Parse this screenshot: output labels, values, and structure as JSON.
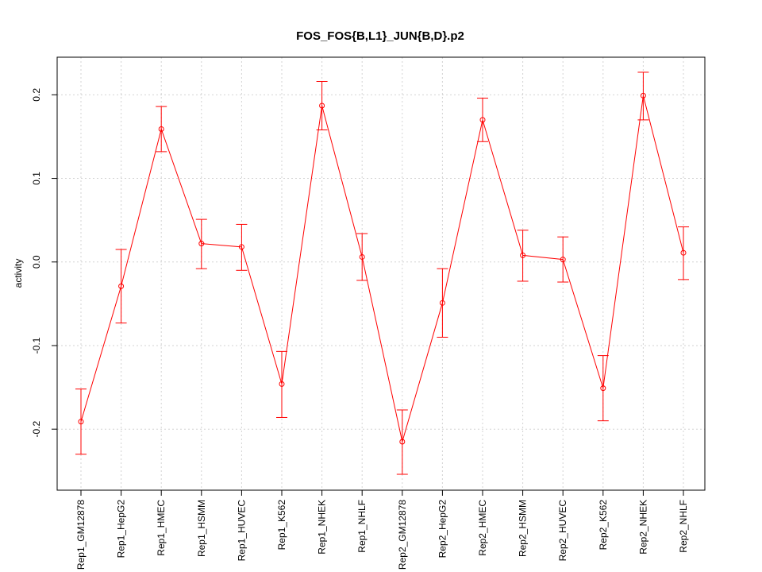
{
  "chart_data": {
    "type": "line",
    "title": "FOS_FOS{B,L1}_JUN{B,D}.p2",
    "xlabel": "",
    "ylabel": "activity",
    "categories": [
      "Rep1_GM12878",
      "Rep1_HepG2",
      "Rep1_HMEC",
      "Rep1_HSMM",
      "Rep1_HUVEC",
      "Rep1_K562",
      "Rep1_NHEK",
      "Rep1_NHLF",
      "Rep2_GM12878",
      "Rep2_HepG2",
      "Rep2_HMEC",
      "Rep2_HSMM",
      "Rep2_HUVEC",
      "Rep2_K562",
      "Rep2_NHEK",
      "Rep2_NHLF"
    ],
    "yticks": [
      -0.2,
      -0.1,
      0.0,
      0.1,
      0.2
    ],
    "ytick_labels": [
      "-0.2",
      "-0.1",
      "0.0",
      "0.1",
      "0.2"
    ],
    "ylim": [
      -0.273,
      0.245
    ],
    "grid": true,
    "series": [
      {
        "color": "#ff0000",
        "values": [
          -0.191,
          -0.029,
          0.159,
          0.022,
          0.018,
          -0.146,
          0.187,
          0.006,
          -0.215,
          -0.049,
          0.17,
          0.008,
          0.003,
          -0.151,
          0.199,
          0.011
        ],
        "err_low": [
          -0.23,
          -0.073,
          0.132,
          -0.008,
          -0.01,
          -0.186,
          0.158,
          -0.022,
          -0.254,
          -0.09,
          0.144,
          -0.023,
          -0.024,
          -0.19,
          0.17,
          -0.021
        ],
        "err_high": [
          -0.152,
          0.015,
          0.186,
          0.051,
          0.045,
          -0.107,
          0.216,
          0.034,
          -0.177,
          -0.008,
          0.196,
          0.038,
          0.03,
          -0.112,
          0.227,
          0.042
        ]
      }
    ]
  }
}
